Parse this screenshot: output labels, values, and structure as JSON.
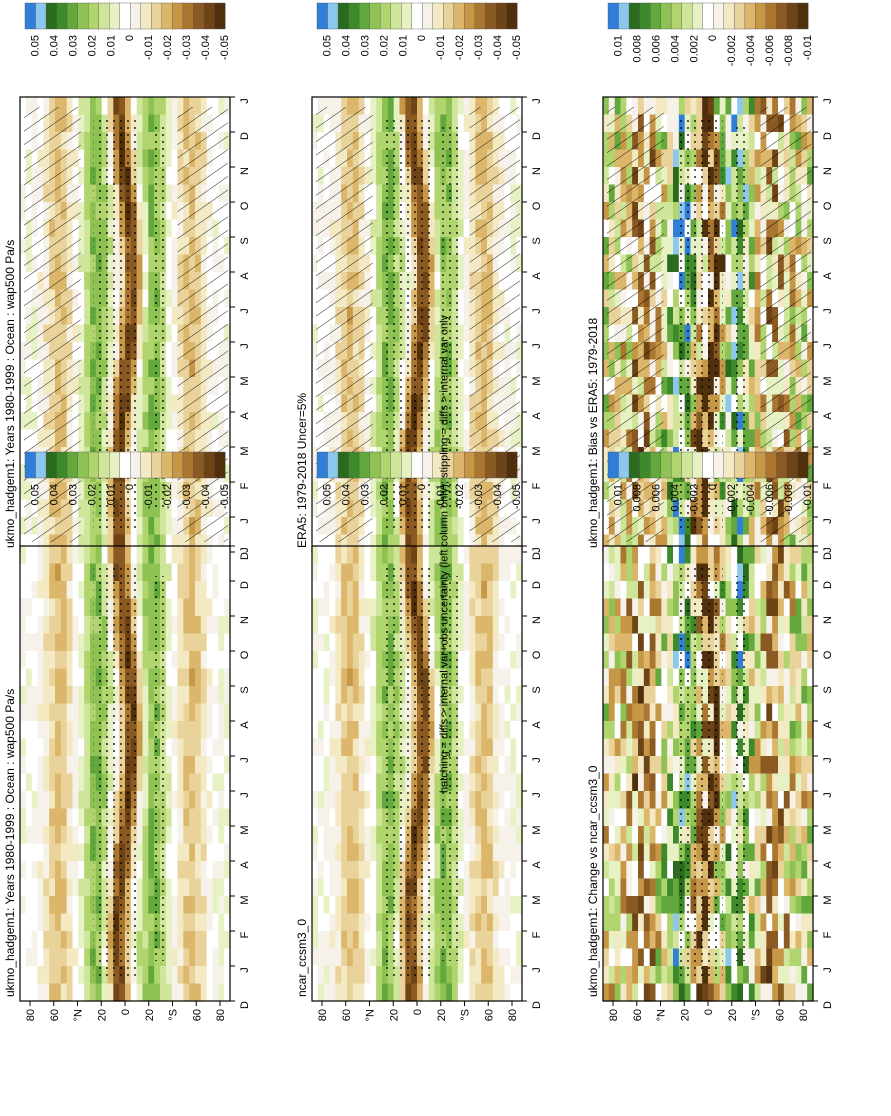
{
  "figure": {
    "footnote": "hatching = diffs > internal var+obs uncertainty (left column only); stippling = diffs > internal var only"
  },
  "chart_data": [
    {
      "type": "heatmap",
      "id": "p1",
      "title": "ukmo_hadgem1: Years 1980-1999 : Ocean : wap500 Pa/s",
      "x_ticks": [
        "D",
        "J",
        "F",
        "M",
        "A",
        "M",
        "J",
        "J",
        "A",
        "S",
        "O",
        "N",
        "D",
        "J"
      ],
      "y_ticks": [
        "80",
        "60",
        "°N",
        "20",
        "0",
        "20",
        "°S",
        "60",
        "80"
      ],
      "colorbar_levels": [
        "0.05",
        "0.04",
        "0.03",
        "0.02",
        "0.01",
        "0",
        "-0.01",
        "-0.02",
        "-0.03",
        "-0.04",
        "-0.05"
      ],
      "hatching": true,
      "stippling": true
    },
    {
      "type": "heatmap",
      "id": "p2",
      "title": "ukmo_hadgem1: Years 1980-1999 : Ocean : wap500 Pa/s",
      "x_ticks": [
        "D",
        "J",
        "F",
        "M",
        "A",
        "M",
        "J",
        "J",
        "A",
        "S",
        "O",
        "N",
        "D",
        "J"
      ],
      "y_ticks": [
        "80",
        "60",
        "°N",
        "20",
        "0",
        "20",
        "°S",
        "60",
        "80"
      ],
      "colorbar_levels": [
        "0.05",
        "0.04",
        "0.03",
        "0.02",
        "0.01",
        "0",
        "-0.01",
        "-0.02",
        "-0.03",
        "-0.04",
        "-0.05"
      ],
      "hatching": false,
      "stippling": true
    },
    {
      "type": "heatmap",
      "id": "p3",
      "title": "ERA5: 1979-2018 Uncer=5%",
      "x_ticks": [
        "D",
        "J",
        "F",
        "M",
        "A",
        "M",
        "J",
        "J",
        "A",
        "S",
        "O",
        "N",
        "D",
        "J"
      ],
      "y_ticks": [
        "80",
        "60",
        "°N",
        "20",
        "0",
        "20",
        "°S",
        "60",
        "80"
      ],
      "colorbar_levels": [
        "0.05",
        "0.04",
        "0.03",
        "0.02",
        "0.01",
        "0",
        "-0.01",
        "-0.02",
        "-0.03",
        "-0.04",
        "-0.05"
      ],
      "hatching": true,
      "stippling": true
    },
    {
      "type": "heatmap",
      "id": "p4",
      "title": "ncar_ccsm3_0",
      "x_ticks": [
        "D",
        "J",
        "F",
        "M",
        "A",
        "M",
        "J",
        "J",
        "A",
        "S",
        "O",
        "N",
        "D",
        "J"
      ],
      "y_ticks": [
        "80",
        "60",
        "°N",
        "20",
        "0",
        "20",
        "°S",
        "60",
        "80"
      ],
      "colorbar_levels": [
        "0.05",
        "0.04",
        "0.03",
        "0.02",
        "0.01",
        "0",
        "-0.01",
        "-0.02",
        "-0.03",
        "-0.04",
        "-0.05"
      ],
      "hatching": false,
      "stippling": true
    },
    {
      "type": "heatmap",
      "id": "p5",
      "title": "ukmo_hadgem1: Bias vs ERA5: 1979-2018",
      "x_ticks": [
        "D",
        "J",
        "F",
        "M",
        "A",
        "M",
        "J",
        "J",
        "A",
        "S",
        "O",
        "N",
        "D",
        "J"
      ],
      "y_ticks": [
        "80",
        "60",
        "°N",
        "20",
        "0",
        "20",
        "°S",
        "60",
        "80"
      ],
      "colorbar_levels": [
        "0.01",
        "0.008",
        "0.006",
        "0.004",
        "0.002",
        "0",
        "-0.002",
        "-0.004",
        "-0.006",
        "-0.008",
        "-0.01"
      ],
      "hatching": true,
      "stippling": true
    },
    {
      "type": "heatmap",
      "id": "p6",
      "title": "ukmo_hadgem1: Change vs ncar_ccsm3_0",
      "x_ticks": [
        "D",
        "J",
        "F",
        "M",
        "A",
        "M",
        "J",
        "J",
        "A",
        "S",
        "O",
        "N",
        "D",
        "J"
      ],
      "y_ticks": [
        "80",
        "60",
        "°N",
        "20",
        "0",
        "20",
        "°S",
        "60",
        "80"
      ],
      "colorbar_levels": [
        "0.01",
        "0.008",
        "0.006",
        "0.004",
        "0.002",
        "0",
        "-0.002",
        "-0.004",
        "-0.006",
        "-0.008",
        "-0.01"
      ],
      "hatching": false,
      "stippling": true
    }
  ],
  "palette": [
    "#2f7fd8",
    "#8cc8ee",
    "#2a6b1e",
    "#3d8a2a",
    "#62a83c",
    "#8ec354",
    "#b0d46e",
    "#cfe59a",
    "#e6f1c4",
    "#ffffff",
    "#f6f2ea",
    "#f3e9c3",
    "#ead39a",
    "#dcb76b",
    "#c79748",
    "#aa7630",
    "#8a5a22",
    "#6e4315",
    "#50300c"
  ]
}
